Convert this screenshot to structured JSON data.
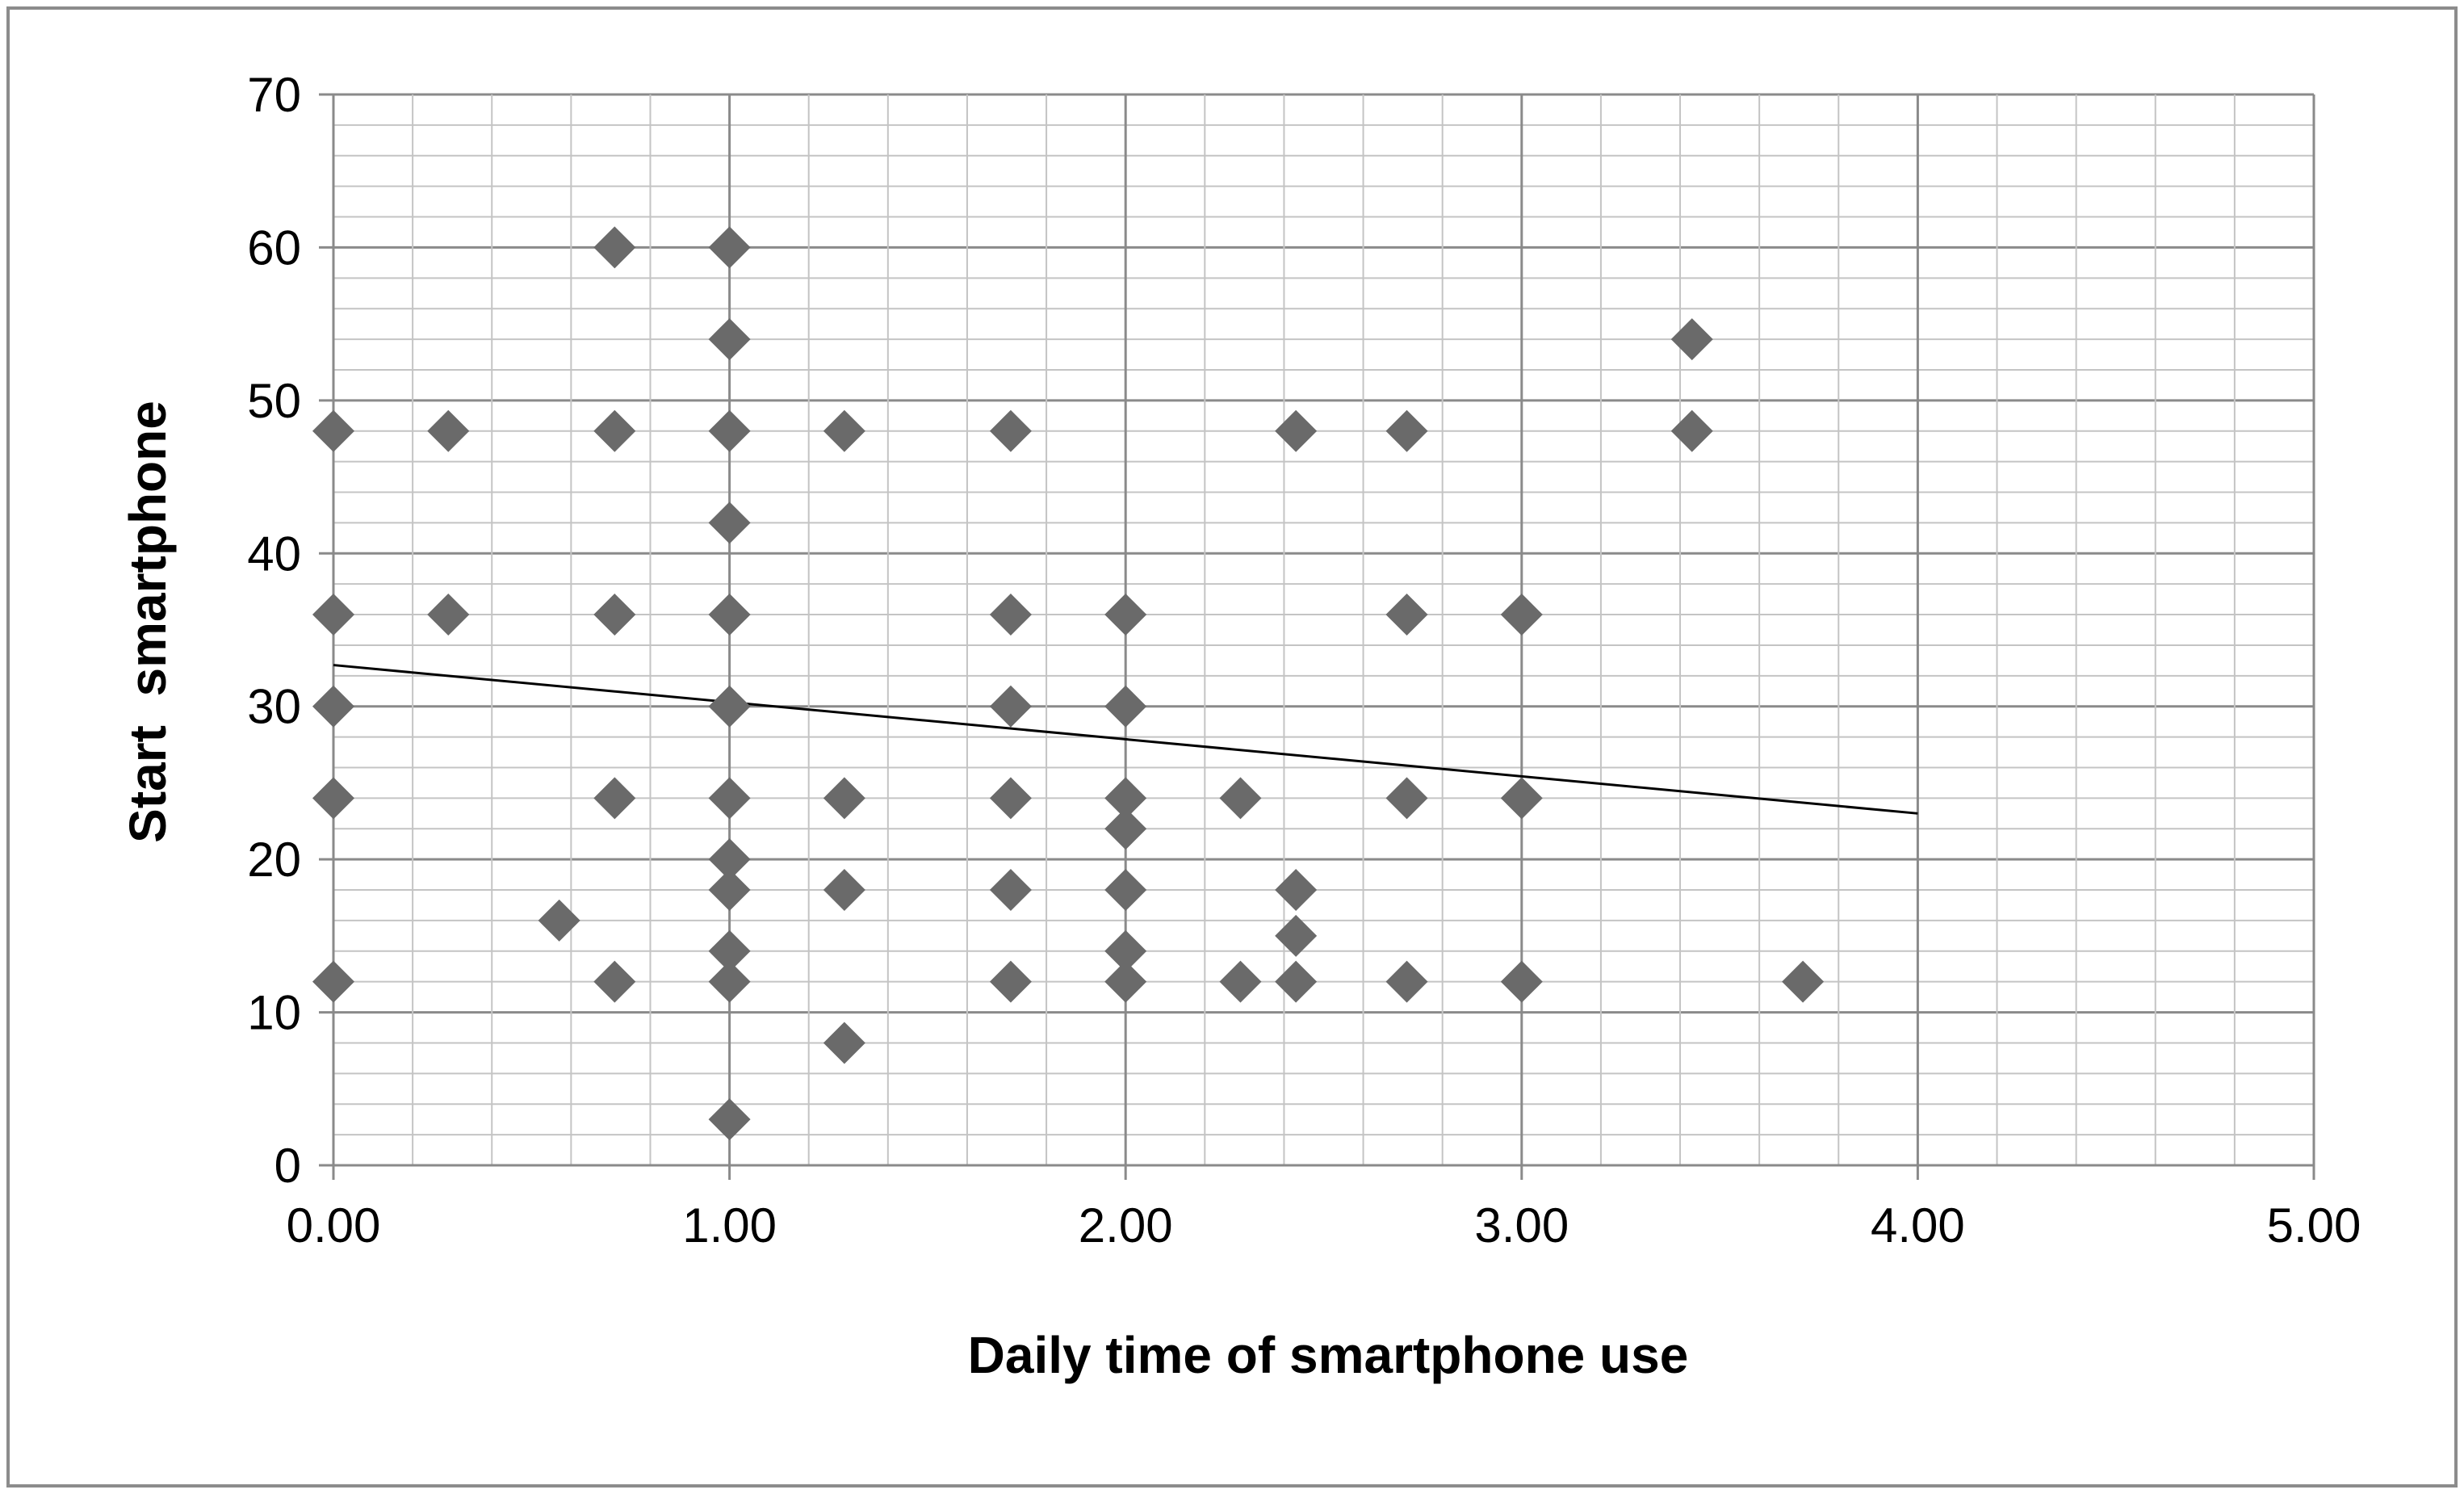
{
  "chart_data": {
    "type": "scatter",
    "title": "",
    "xlabel": "Daily time of smartphone use",
    "ylabel": "Start  smartphone",
    "xlim": [
      0,
      5
    ],
    "ylim": [
      0,
      70
    ],
    "x_ticks": [
      "0.00",
      "1.00",
      "2.00",
      "3.00",
      "4.00",
      "5.00"
    ],
    "y_ticks": [
      "0",
      "10",
      "20",
      "30",
      "40",
      "50",
      "60",
      "70"
    ],
    "grid": true,
    "legend": "none",
    "marker": "diamond",
    "marker_color": "#6a6a6a",
    "series": [
      {
        "points": [
          [
            0.0,
            48
          ],
          [
            0.0,
            36
          ],
          [
            0.0,
            30
          ],
          [
            0.0,
            24
          ],
          [
            0.0,
            12
          ],
          [
            0.29,
            48
          ],
          [
            0.29,
            36
          ],
          [
            0.57,
            16
          ],
          [
            0.71,
            60
          ],
          [
            0.71,
            48
          ],
          [
            0.71,
            36
          ],
          [
            0.71,
            24
          ],
          [
            0.71,
            12
          ],
          [
            1.0,
            60
          ],
          [
            1.0,
            54
          ],
          [
            1.0,
            48
          ],
          [
            1.0,
            42
          ],
          [
            1.0,
            36
          ],
          [
            1.0,
            30
          ],
          [
            1.0,
            24
          ],
          [
            1.0,
            20
          ],
          [
            1.0,
            18
          ],
          [
            1.0,
            14
          ],
          [
            1.0,
            12
          ],
          [
            1.0,
            3
          ],
          [
            1.29,
            48
          ],
          [
            1.29,
            24
          ],
          [
            1.29,
            18
          ],
          [
            1.29,
            8
          ],
          [
            1.71,
            48
          ],
          [
            1.71,
            36
          ],
          [
            1.71,
            30
          ],
          [
            1.71,
            24
          ],
          [
            1.71,
            18
          ],
          [
            1.71,
            12
          ],
          [
            2.0,
            36
          ],
          [
            2.0,
            30
          ],
          [
            2.0,
            24
          ],
          [
            2.0,
            22
          ],
          [
            2.0,
            18
          ],
          [
            2.0,
            14
          ],
          [
            2.0,
            12
          ],
          [
            2.29,
            24
          ],
          [
            2.29,
            12
          ],
          [
            2.43,
            48
          ],
          [
            2.43,
            18
          ],
          [
            2.43,
            15
          ],
          [
            2.43,
            12
          ],
          [
            2.71,
            48
          ],
          [
            2.71,
            36
          ],
          [
            2.71,
            24
          ],
          [
            2.71,
            12
          ],
          [
            3.0,
            36
          ],
          [
            3.0,
            24
          ],
          [
            3.0,
            12
          ],
          [
            3.43,
            54
          ],
          [
            3.43,
            48
          ],
          [
            3.71,
            12
          ]
        ]
      }
    ],
    "trendline": {
      "x": [
        0,
        4
      ],
      "y": [
        32.7,
        23.0
      ],
      "color": "#000000"
    }
  }
}
